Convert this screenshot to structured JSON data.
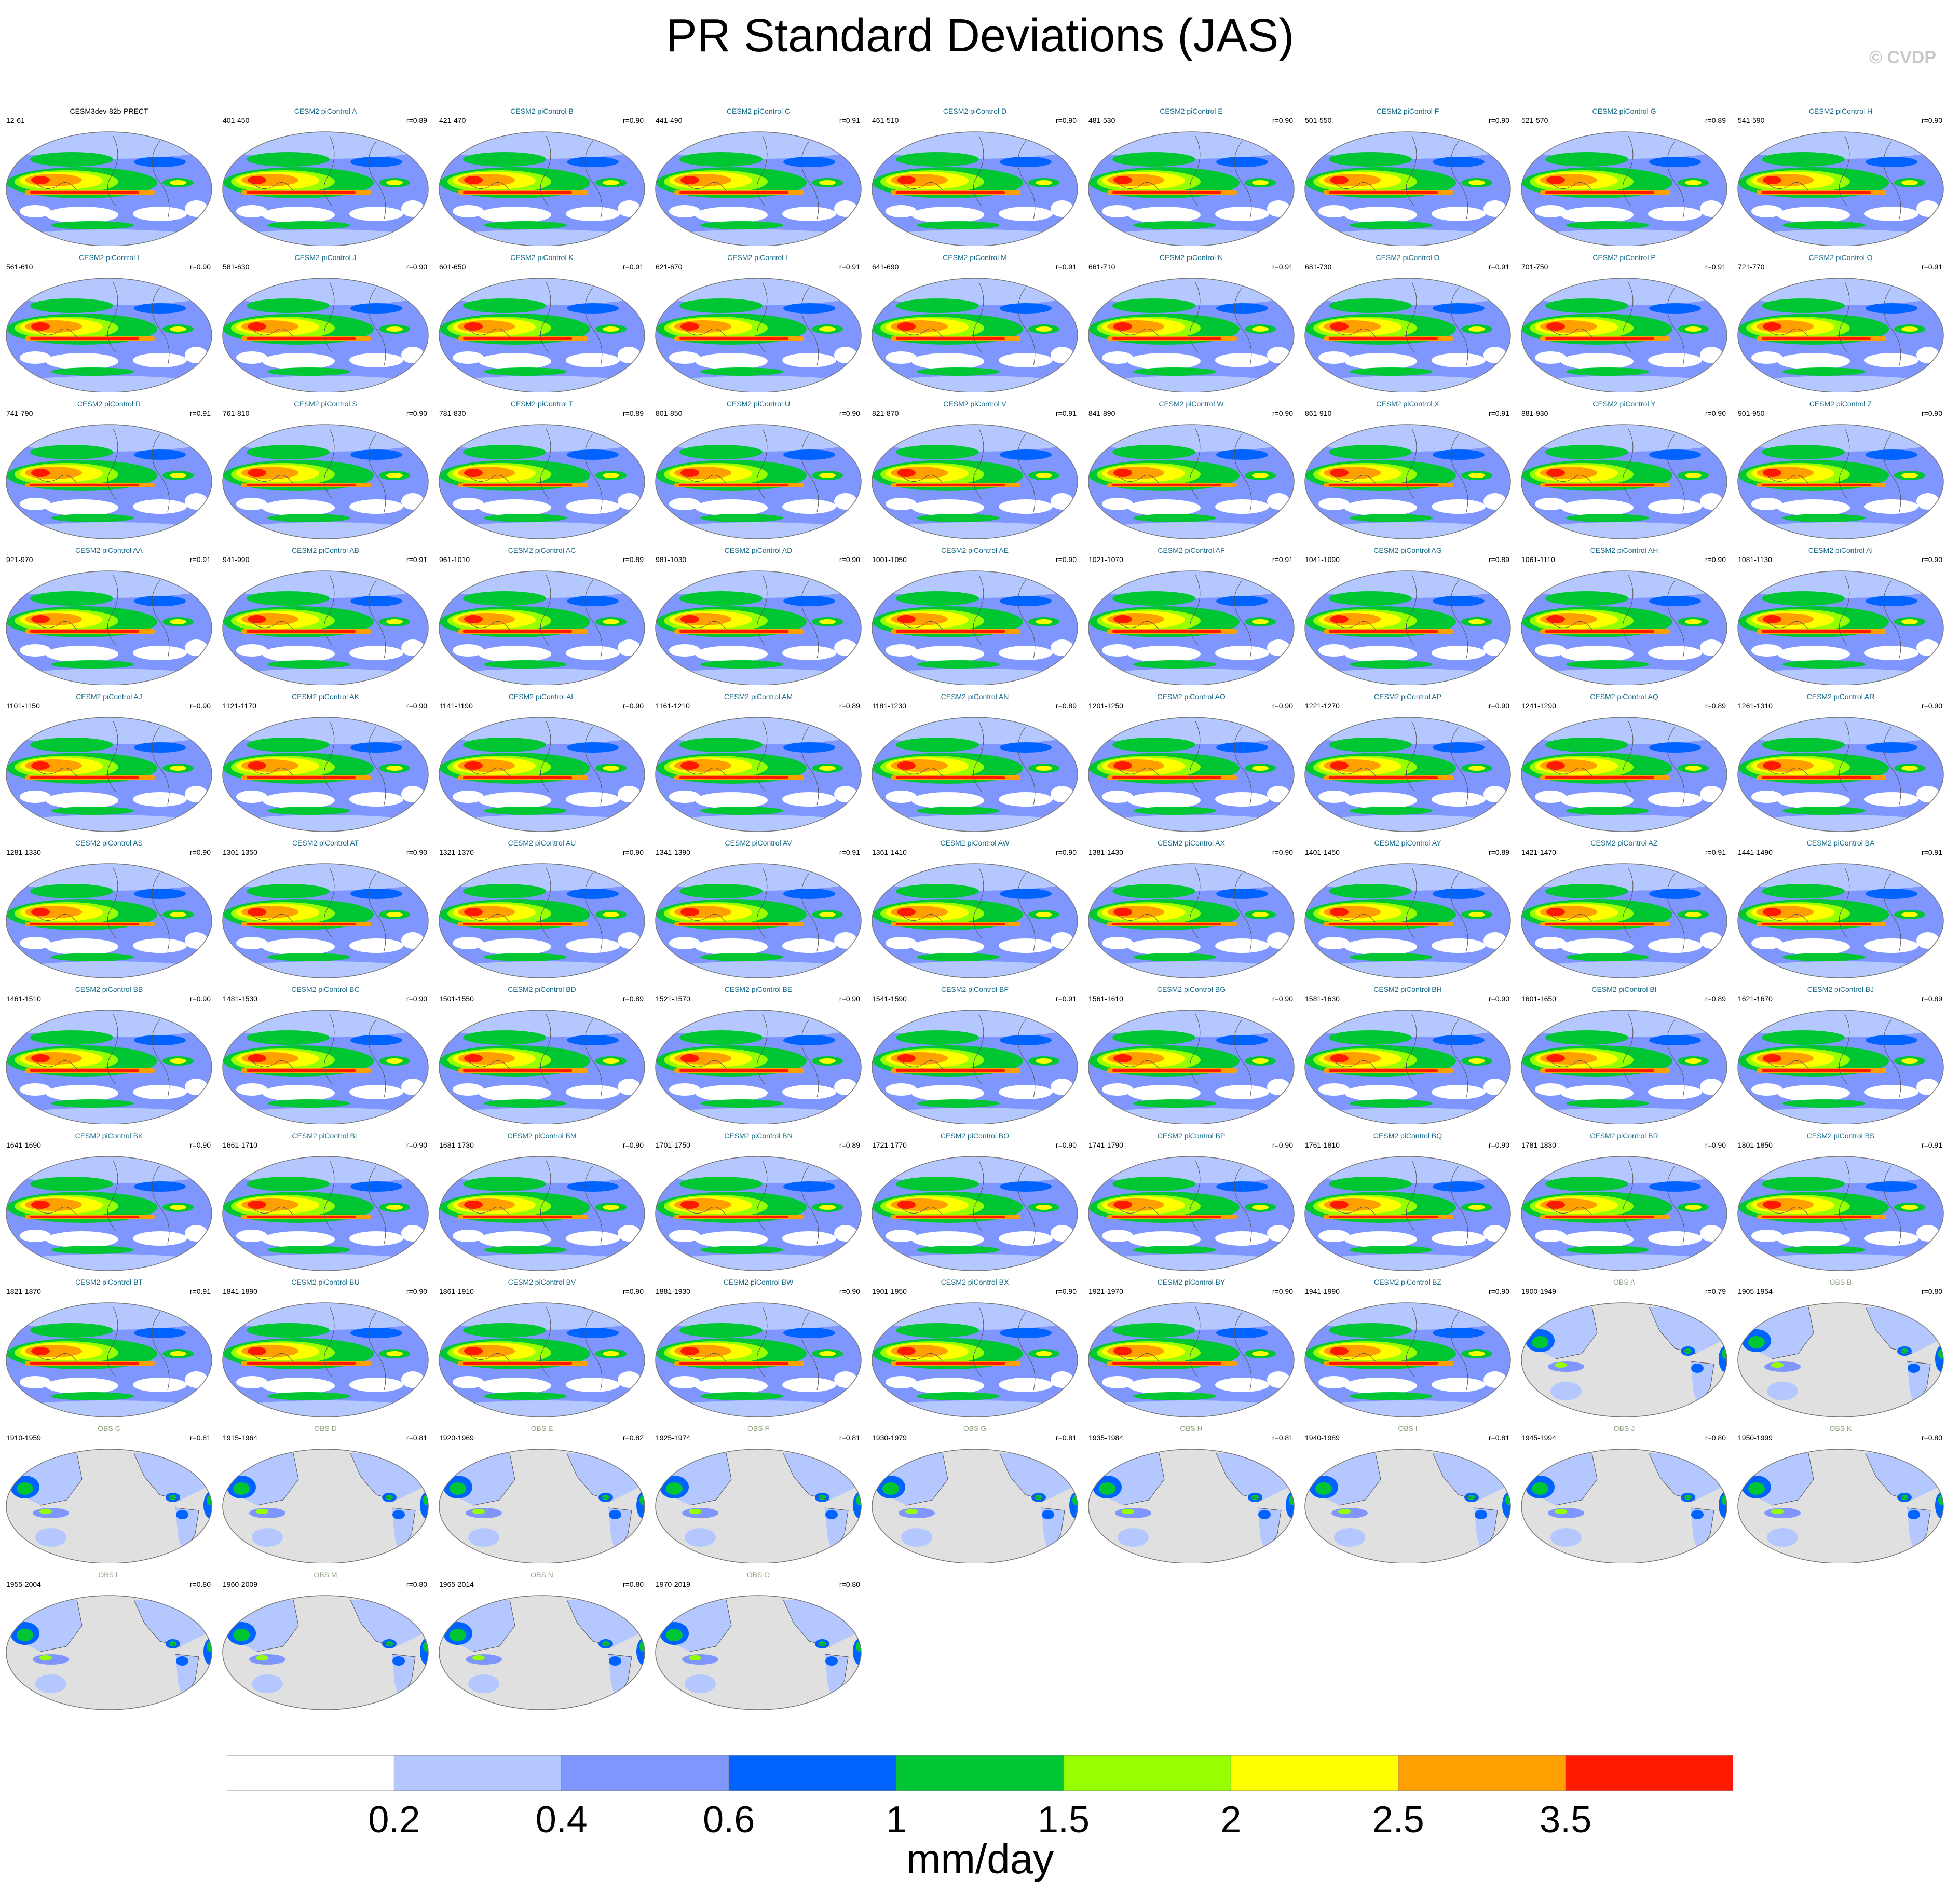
{
  "title": "PR Standard Deviations (JAS)",
  "copyright": "© CVDP",
  "colorbar": {
    "unit": "mm/day",
    "levels": [
      "0.2",
      "0.4",
      "0.6",
      "1",
      "1.5",
      "2",
      "2.5",
      "3.5"
    ],
    "colors": [
      "#ffffff",
      "#b4c8ff",
      "#7f96ff",
      "#0063ff",
      "#00c633",
      "#96ff00",
      "#ffff00",
      "#ffa000",
      "#ff1900"
    ]
  },
  "chart_data": {
    "type": "heatmap",
    "title": "PR Standard Deviations (JAS)",
    "variable": "PR",
    "season": "JAS",
    "statistic": "Standard Deviations",
    "units": "mm/day",
    "contour_levels": [
      0.2,
      0.4,
      0.6,
      1,
      1.5,
      2,
      2.5,
      3.5
    ],
    "panels": [
      {
        "name": "CESM3dev-82b-PRECT",
        "years": "12-61",
        "r": ""
      },
      {
        "name": "CESM2 piControl A",
        "years": "401-450",
        "r": "r=0.89"
      },
      {
        "name": "CESM2 piControl B",
        "years": "421-470",
        "r": "r=0.90"
      },
      {
        "name": "CESM2 piControl C",
        "years": "441-490",
        "r": "r=0.91"
      },
      {
        "name": "CESM2 piControl D",
        "years": "461-510",
        "r": "r=0.90"
      },
      {
        "name": "CESM2 piControl E",
        "years": "481-530",
        "r": "r=0.90"
      },
      {
        "name": "CESM2 piControl F",
        "years": "501-550",
        "r": "r=0.90"
      },
      {
        "name": "CESM2 piControl G",
        "years": "521-570",
        "r": "r=0.89"
      },
      {
        "name": "CESM2 piControl H",
        "years": "541-590",
        "r": "r=0.90"
      },
      {
        "name": "CESM2 piControl I",
        "years": "561-610",
        "r": "r=0.90"
      },
      {
        "name": "CESM2 piControl J",
        "years": "581-630",
        "r": "r=0.90"
      },
      {
        "name": "CESM2 piControl K",
        "years": "601-650",
        "r": "r=0.91"
      },
      {
        "name": "CESM2 piControl L",
        "years": "621-670",
        "r": "r=0.91"
      },
      {
        "name": "CESM2 piControl M",
        "years": "641-690",
        "r": "r=0.91"
      },
      {
        "name": "CESM2 piControl N",
        "years": "661-710",
        "r": "r=0.91"
      },
      {
        "name": "CESM2 piControl O",
        "years": "681-730",
        "r": "r=0.91"
      },
      {
        "name": "CESM2 piControl P",
        "years": "701-750",
        "r": "r=0.91"
      },
      {
        "name": "CESM2 piControl Q",
        "years": "721-770",
        "r": "r=0.91"
      },
      {
        "name": "CESM2 piControl R",
        "years": "741-790",
        "r": "r=0.91"
      },
      {
        "name": "CESM2 piControl S",
        "years": "761-810",
        "r": "r=0.90"
      },
      {
        "name": "CESM2 piControl T",
        "years": "781-830",
        "r": "r=0.89"
      },
      {
        "name": "CESM2 piControl U",
        "years": "801-850",
        "r": "r=0.90"
      },
      {
        "name": "CESM2 piControl V",
        "years": "821-870",
        "r": "r=0.91"
      },
      {
        "name": "CESM2 piControl W",
        "years": "841-890",
        "r": "r=0.90"
      },
      {
        "name": "CESM2 piControl X",
        "years": "861-910",
        "r": "r=0.91"
      },
      {
        "name": "CESM2 piControl Y",
        "years": "881-930",
        "r": "r=0.90"
      },
      {
        "name": "CESM2 piControl Z",
        "years": "901-950",
        "r": "r=0.90"
      },
      {
        "name": "CESM2 piControl AA",
        "years": "921-970",
        "r": "r=0.91"
      },
      {
        "name": "CESM2 piControl AB",
        "years": "941-990",
        "r": "r=0.91"
      },
      {
        "name": "CESM2 piControl AC",
        "years": "961-1010",
        "r": "r=0.89"
      },
      {
        "name": "CESM2 piControl AD",
        "years": "981-1030",
        "r": "r=0.90"
      },
      {
        "name": "CESM2 piControl AE",
        "years": "1001-1050",
        "r": "r=0.90"
      },
      {
        "name": "CESM2 piControl AF",
        "years": "1021-1070",
        "r": "r=0.91"
      },
      {
        "name": "CESM2 piControl AG",
        "years": "1041-1090",
        "r": "r=0.89"
      },
      {
        "name": "CESM2 piControl AH",
        "years": "1061-1110",
        "r": "r=0.90"
      },
      {
        "name": "CESM2 piControl AI",
        "years": "1081-1130",
        "r": "r=0.90"
      },
      {
        "name": "CESM2 piControl AJ",
        "years": "1101-1150",
        "r": "r=0.90"
      },
      {
        "name": "CESM2 piControl AK",
        "years": "1121-1170",
        "r": "r=0.90"
      },
      {
        "name": "CESM2 piControl AL",
        "years": "1141-1190",
        "r": "r=0.90"
      },
      {
        "name": "CESM2 piControl AM",
        "years": "1161-1210",
        "r": "r=0.89"
      },
      {
        "name": "CESM2 piControl AN",
        "years": "1181-1230",
        "r": "r=0.89"
      },
      {
        "name": "CESM2 piControl AO",
        "years": "1201-1250",
        "r": "r=0.90"
      },
      {
        "name": "CESM2 piControl AP",
        "years": "1221-1270",
        "r": "r=0.90"
      },
      {
        "name": "CESM2 piControl AQ",
        "years": "1241-1290",
        "r": "r=0.89"
      },
      {
        "name": "CESM2 piControl AR",
        "years": "1261-1310",
        "r": "r=0.90"
      },
      {
        "name": "CESM2 piControl AS",
        "years": "1281-1330",
        "r": "r=0.90"
      },
      {
        "name": "CESM2 piControl AT",
        "years": "1301-1350",
        "r": "r=0.90"
      },
      {
        "name": "CESM2 piControl AU",
        "years": "1321-1370",
        "r": "r=0.90"
      },
      {
        "name": "CESM2 piControl AV",
        "years": "1341-1390",
        "r": "r=0.91"
      },
      {
        "name": "CESM2 piControl AW",
        "years": "1361-1410",
        "r": "r=0.90"
      },
      {
        "name": "CESM2 piControl AX",
        "years": "1381-1430",
        "r": "r=0.90"
      },
      {
        "name": "CESM2 piControl AY",
        "years": "1401-1450",
        "r": "r=0.89"
      },
      {
        "name": "CESM2 piControl AZ",
        "years": "1421-1470",
        "r": "r=0.91"
      },
      {
        "name": "CESM2 piControl BA",
        "years": "1441-1490",
        "r": "r=0.91"
      },
      {
        "name": "CESM2 piControl BB",
        "years": "1461-1510",
        "r": "r=0.90"
      },
      {
        "name": "CESM2 piControl BC",
        "years": "1481-1530",
        "r": "r=0.90"
      },
      {
        "name": "CESM2 piControl BD",
        "years": "1501-1550",
        "r": "r=0.89"
      },
      {
        "name": "CESM2 piControl BE",
        "years": "1521-1570",
        "r": "r=0.90"
      },
      {
        "name": "CESM2 piControl BF",
        "years": "1541-1590",
        "r": "r=0.91"
      },
      {
        "name": "CESM2 piControl BG",
        "years": "1561-1610",
        "r": "r=0.90"
      },
      {
        "name": "CESM2 piControl BH",
        "years": "1581-1630",
        "r": "r=0.90"
      },
      {
        "name": "CESM2 piControl BI",
        "years": "1601-1650",
        "r": "r=0.89"
      },
      {
        "name": "CESM2 piControl BJ",
        "years": "1621-1670",
        "r": "r=0.89"
      },
      {
        "name": "CESM2 piControl BK",
        "years": "1641-1690",
        "r": "r=0.90"
      },
      {
        "name": "CESM2 piControl BL",
        "years": "1661-1710",
        "r": "r=0.90"
      },
      {
        "name": "CESM2 piControl BM",
        "years": "1681-1730",
        "r": "r=0.90"
      },
      {
        "name": "CESM2 piControl BN",
        "years": "1701-1750",
        "r": "r=0.89"
      },
      {
        "name": "CESM2 piControl BO",
        "years": "1721-1770",
        "r": "r=0.90"
      },
      {
        "name": "CESM2 piControl BP",
        "years": "1741-1790",
        "r": "r=0.90"
      },
      {
        "name": "CESM2 piControl BQ",
        "years": "1761-1810",
        "r": "r=0.90"
      },
      {
        "name": "CESM2 piControl BR",
        "years": "1781-1830",
        "r": "r=0.90"
      },
      {
        "name": "CESM2 piControl BS",
        "years": "1801-1850",
        "r": "r=0.91"
      },
      {
        "name": "CESM2 piControl BT",
        "years": "1821-1870",
        "r": "r=0.91"
      },
      {
        "name": "CESM2 piControl BU",
        "years": "1841-1890",
        "r": "r=0.90"
      },
      {
        "name": "CESM2 piControl BV",
        "years": "1861-1910",
        "r": "r=0.90"
      },
      {
        "name": "CESM2 piControl BW",
        "years": "1881-1930",
        "r": "r=0.90"
      },
      {
        "name": "CESM2 piControl BX",
        "years": "1901-1950",
        "r": "r=0.90"
      },
      {
        "name": "CESM2 piControl BY",
        "years": "1921-1970",
        "r": "r=0.90"
      },
      {
        "name": "CESM2 piControl BZ",
        "years": "1941-1990",
        "r": "r=0.90"
      },
      {
        "name": "OBS A",
        "years": "1900-1949",
        "r": "r=0.79"
      },
      {
        "name": "OBS B",
        "years": "1905-1954",
        "r": "r=0.80"
      },
      {
        "name": "OBS C",
        "years": "1910-1959",
        "r": "r=0.81"
      },
      {
        "name": "OBS D",
        "years": "1915-1964",
        "r": "r=0.81"
      },
      {
        "name": "OBS E",
        "years": "1920-1969",
        "r": "r=0.82"
      },
      {
        "name": "OBS F",
        "years": "1925-1974",
        "r": "r=0.81"
      },
      {
        "name": "OBS G",
        "years": "1930-1979",
        "r": "r=0.81"
      },
      {
        "name": "OBS H",
        "years": "1935-1984",
        "r": "r=0.81"
      },
      {
        "name": "OBS I",
        "years": "1940-1989",
        "r": "r=0.81"
      },
      {
        "name": "OBS J",
        "years": "1945-1994",
        "r": "r=0.80"
      },
      {
        "name": "OBS K",
        "years": "1950-1999",
        "r": "r=0.80"
      },
      {
        "name": "OBS L",
        "years": "1955-2004",
        "r": "r=0.80"
      },
      {
        "name": "OBS M",
        "years": "1960-2009",
        "r": "r=0.80"
      },
      {
        "name": "OBS N",
        "years": "1965-2014",
        "r": "r=0.80"
      },
      {
        "name": "OBS O",
        "years": "1970-2019",
        "r": "r=0.80"
      }
    ]
  }
}
